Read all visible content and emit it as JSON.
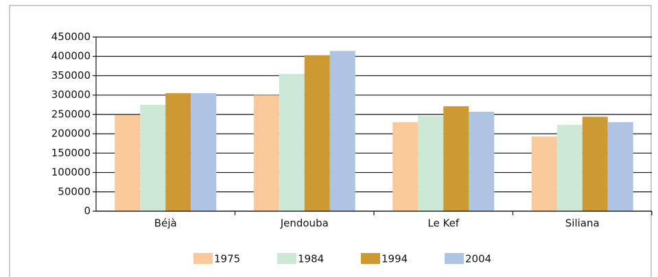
{
  "chart_data": {
    "type": "bar",
    "categories": [
      "Béjà",
      "Jendouba",
      "Le Kef",
      "Siliana"
    ],
    "series": [
      {
        "name": "1975",
        "color": "#f9c99b",
        "values": [
          248000,
          300000,
          230000,
          193000
        ]
      },
      {
        "name": "1984",
        "color": "#cde9d6",
        "values": [
          275000,
          355000,
          246000,
          223000
        ]
      },
      {
        "name": "1994",
        "color": "#cc9933",
        "values": [
          305000,
          403000,
          271000,
          244000
        ]
      },
      {
        "name": "2004",
        "color": "#aec4e3",
        "values": [
          305000,
          414000,
          257000,
          230000
        ]
      }
    ],
    "ylim": [
      0,
      450000
    ],
    "yticks": [
      0,
      50000,
      100000,
      150000,
      200000,
      250000,
      300000,
      350000,
      400000,
      450000
    ],
    "grid": true,
    "legend": "bottom"
  }
}
